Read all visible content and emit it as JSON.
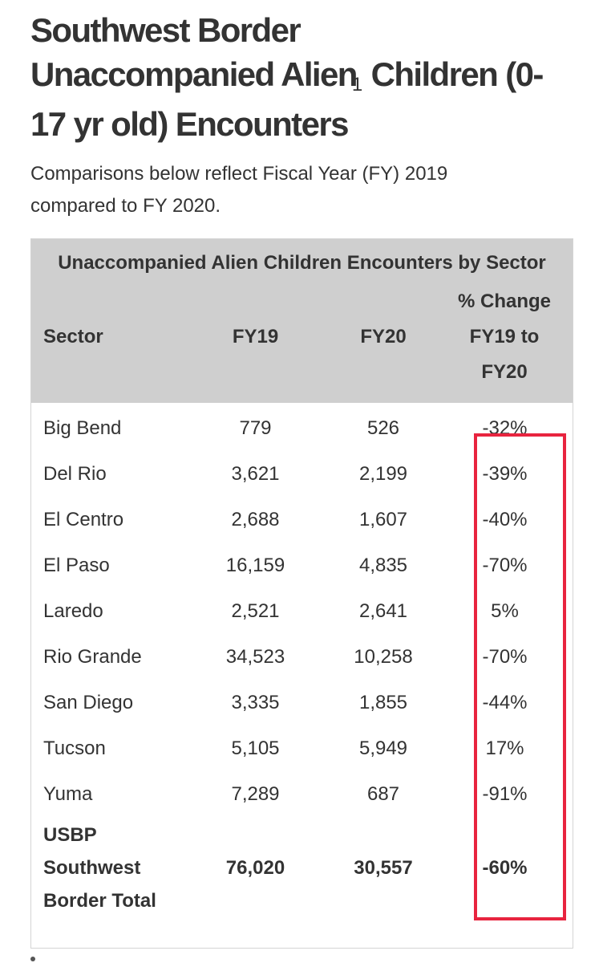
{
  "heading": {
    "line1": "Southwest Border",
    "line2_a": "Unaccompanied Alien",
    "footnote": "1",
    "line2_b": " Children (0-",
    "line3": "17 yr old) Encounters"
  },
  "subtitle": "Comparisons below reflect Fiscal Year (FY) 2019 compared to FY 2020.",
  "table": {
    "caption": "Unaccompanied Alien Children Encounters by Sector",
    "columns": {
      "sector": "Sector",
      "fy19": "FY19",
      "fy20": "FY20",
      "change_line1": "% Change",
      "change_line2": "FY19 to",
      "change_line3": "FY20"
    },
    "rows": [
      {
        "sector": "Big Bend",
        "fy19": "779",
        "fy20": "526",
        "change": "-32%"
      },
      {
        "sector": "Del Rio",
        "fy19": "3,621",
        "fy20": "2,199",
        "change": "-39%"
      },
      {
        "sector": "El Centro",
        "fy19": "2,688",
        "fy20": "1,607",
        "change": "-40%"
      },
      {
        "sector": "El Paso",
        "fy19": "16,159",
        "fy20": "4,835",
        "change": "-70%"
      },
      {
        "sector": "Laredo",
        "fy19": "2,521",
        "fy20": "2,641",
        "change": "5%"
      },
      {
        "sector": "Rio Grande",
        "fy19": "34,523",
        "fy20": "10,258",
        "change": "-70%"
      },
      {
        "sector": "San Diego",
        "fy19": "3,335",
        "fy20": "1,855",
        "change": "-44%"
      },
      {
        "sector": "Tucson",
        "fy19": "5,105",
        "fy20": "5,949",
        "change": "17%"
      },
      {
        "sector": "Yuma",
        "fy19": "7,289",
        "fy20": "687",
        "change": "-91%"
      }
    ],
    "total": {
      "line1": "USBP",
      "line2": "Southwest",
      "line3": "Border Total",
      "fy19": "76,020",
      "fy20": "30,557",
      "change": "-60%"
    }
  },
  "colors": {
    "header_bg": "#cfcfcf",
    "highlight": "#e8243f",
    "text": "#333333"
  }
}
